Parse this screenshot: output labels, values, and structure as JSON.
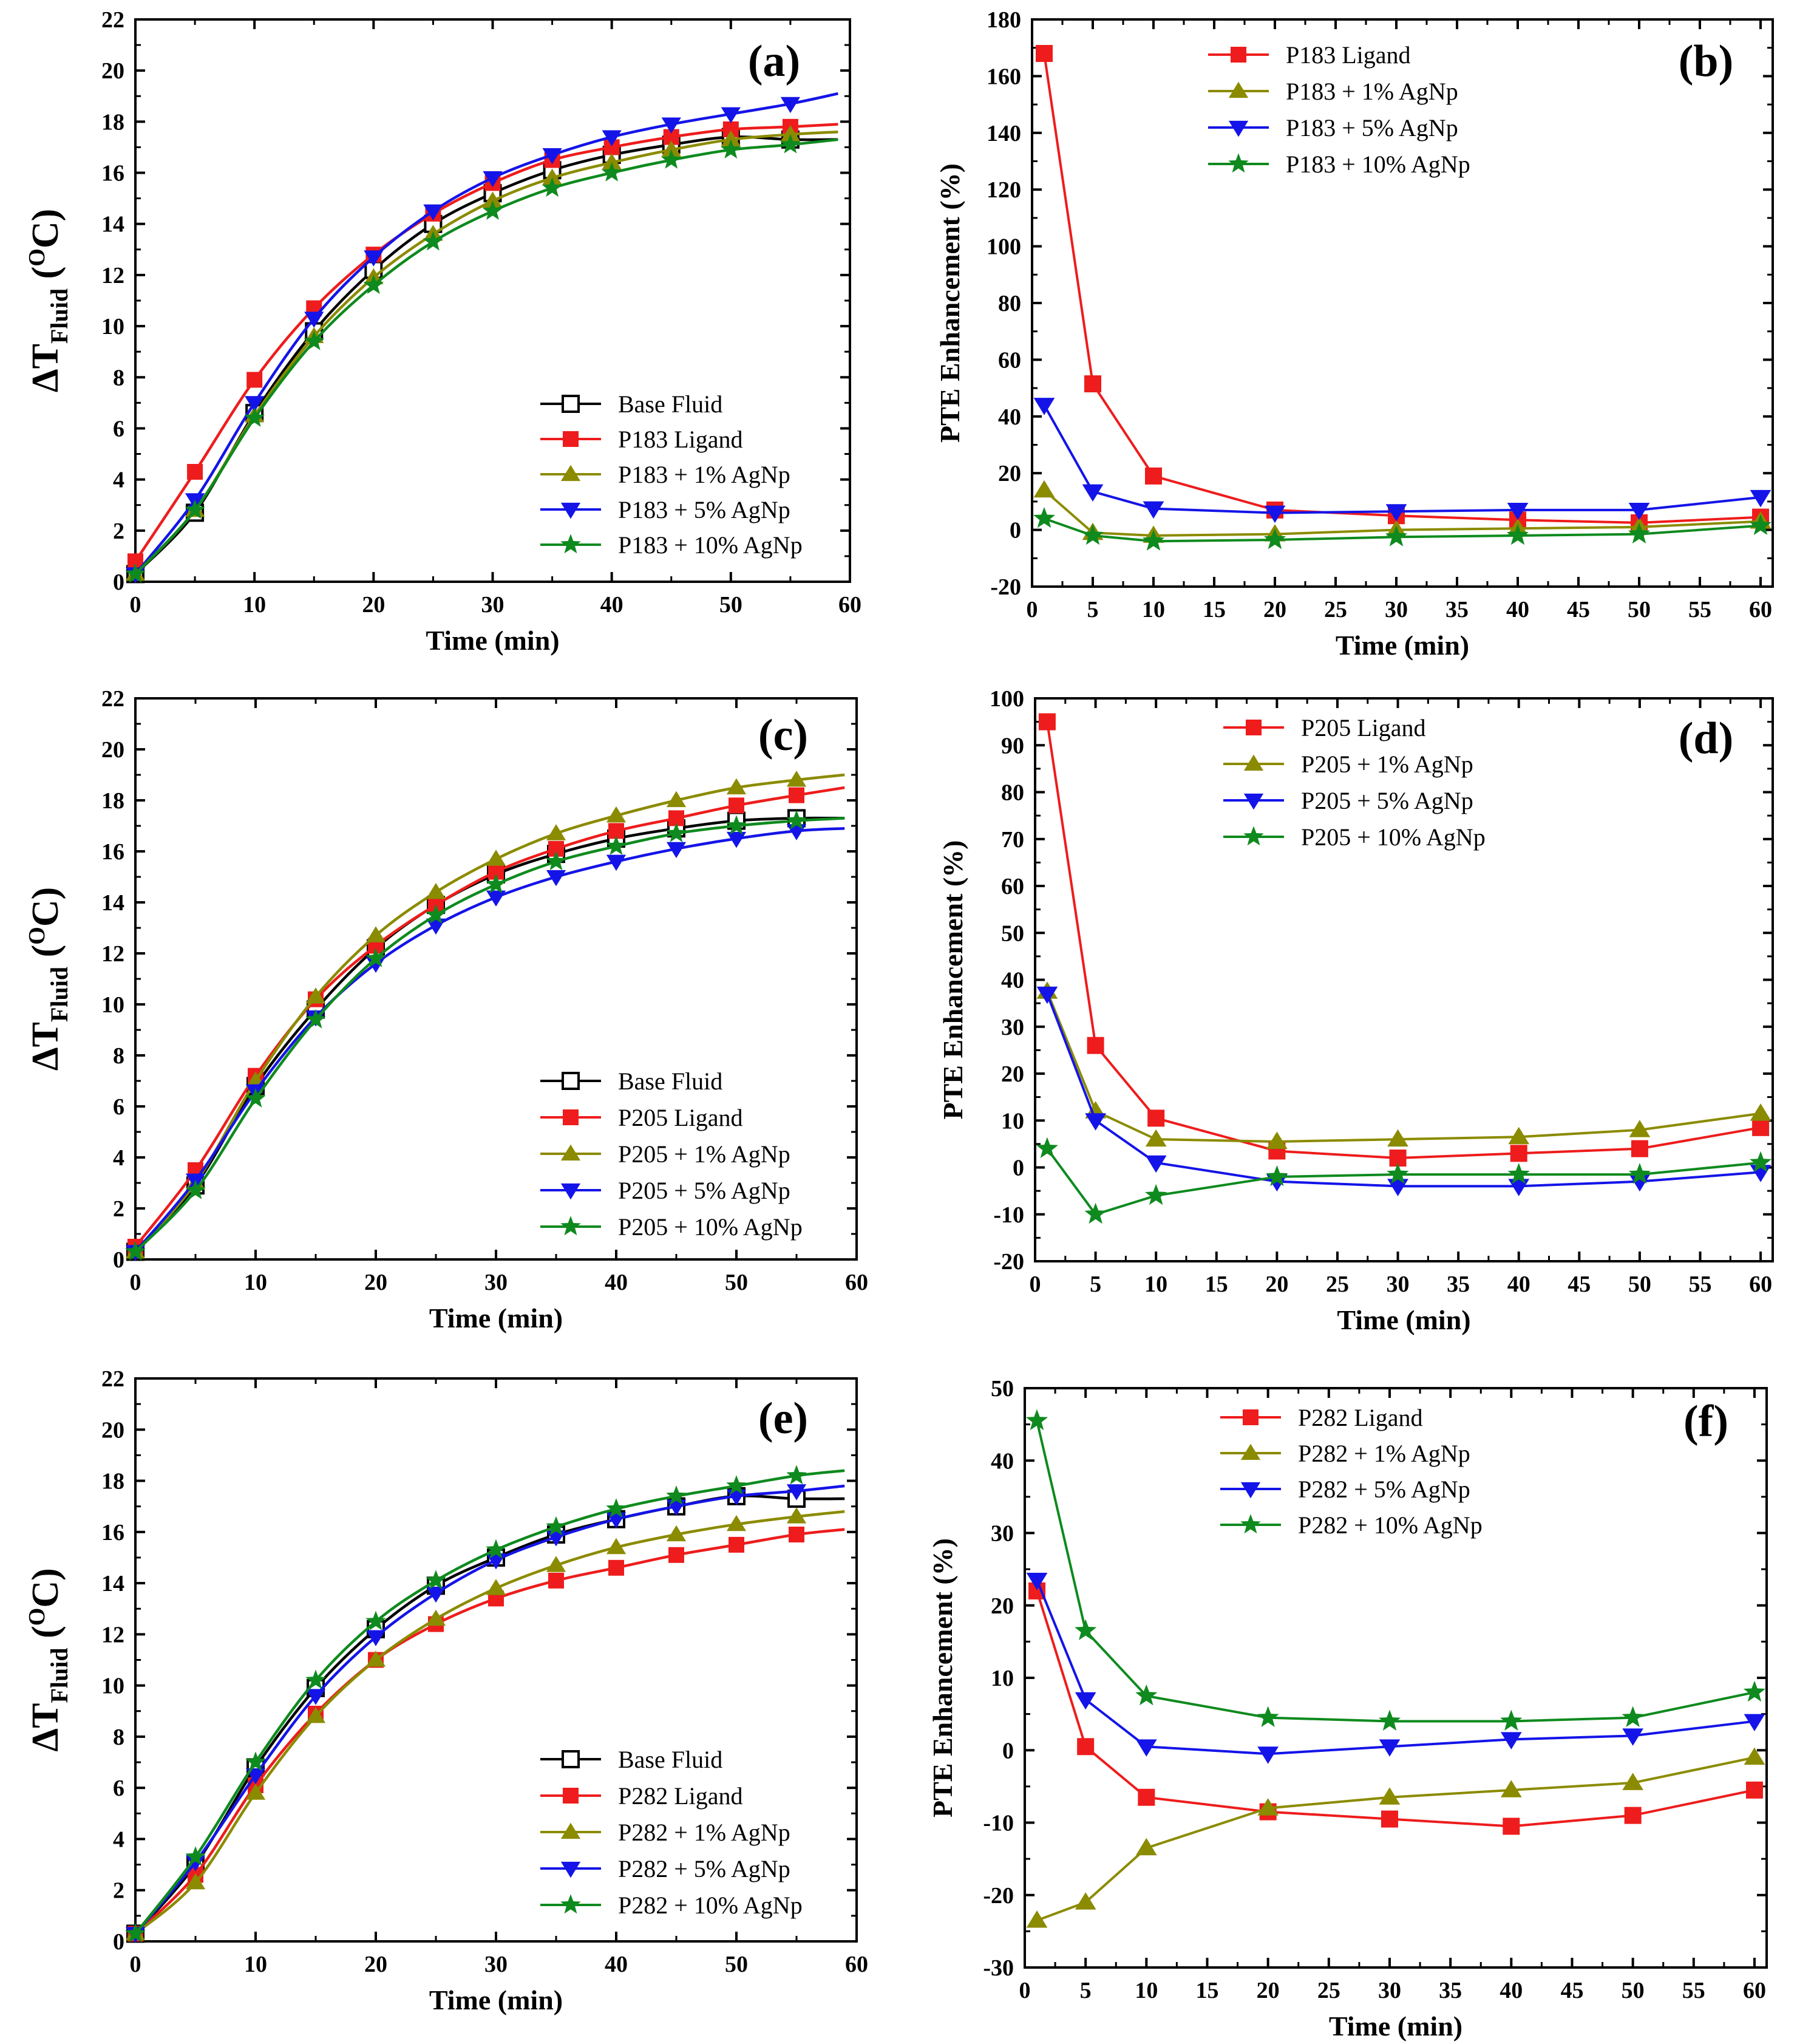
{
  "chart_data": [
    {
      "panel": "(a)",
      "type": "line",
      "xlabel": "Time (min)",
      "ylabel_main": "ΔT",
      "ylabel_sub": "Fluid",
      "ylabel_sup": "O",
      "ylabel_unit": "C",
      "xlim": [
        0,
        60
      ],
      "ylim": [
        0,
        22
      ],
      "xticks": [
        0,
        10,
        20,
        30,
        40,
        50,
        60
      ],
      "yticks": [
        0,
        2,
        4,
        6,
        8,
        10,
        12,
        14,
        16,
        18,
        20,
        22
      ],
      "legend_pos": "bottom-right",
      "series": [
        {
          "name": "Base Fluid",
          "color": "#000000",
          "marker": "square-open",
          "x": [
            0,
            5,
            10,
            15,
            20,
            25,
            30,
            35,
            40,
            45,
            50,
            55,
            59
          ],
          "y": [
            0.3,
            2.7,
            6.6,
            9.8,
            12.2,
            14.0,
            15.2,
            16.1,
            16.7,
            17.1,
            17.4,
            17.3,
            17.3
          ]
        },
        {
          "name": "P183 Ligand",
          "color": "#ee1c1c",
          "marker": "square",
          "x": [
            0,
            5,
            10,
            15,
            20,
            25,
            30,
            35,
            40,
            45,
            50,
            55,
            59
          ],
          "y": [
            0.8,
            4.3,
            7.9,
            10.7,
            12.8,
            14.4,
            15.6,
            16.5,
            17.0,
            17.4,
            17.7,
            17.8,
            17.9
          ]
        },
        {
          "name": "P183 + 1% AgNp",
          "color": "#8b8b00",
          "marker": "triangle-up",
          "x": [
            0,
            5,
            10,
            15,
            20,
            25,
            30,
            35,
            40,
            45,
            50,
            55,
            59
          ],
          "y": [
            0.3,
            2.8,
            6.5,
            9.6,
            11.9,
            13.6,
            14.9,
            15.8,
            16.4,
            16.9,
            17.3,
            17.5,
            17.6
          ]
        },
        {
          "name": "P183 + 5% AgNp",
          "color": "#1414e8",
          "marker": "triangle-down",
          "x": [
            0,
            5,
            10,
            15,
            20,
            25,
            30,
            35,
            40,
            45,
            50,
            55,
            59
          ],
          "y": [
            0.3,
            3.2,
            7.0,
            10.3,
            12.7,
            14.5,
            15.8,
            16.7,
            17.4,
            17.9,
            18.3,
            18.7,
            19.1
          ]
        },
        {
          "name": "P183 + 10% AgNp",
          "color": "#0e8a1e",
          "marker": "star",
          "x": [
            0,
            5,
            10,
            15,
            20,
            25,
            30,
            35,
            40,
            45,
            50,
            55,
            59
          ],
          "y": [
            0.3,
            2.8,
            6.4,
            9.4,
            11.6,
            13.3,
            14.5,
            15.4,
            16.0,
            16.5,
            16.9,
            17.1,
            17.3
          ]
        }
      ]
    },
    {
      "panel": "(b)",
      "type": "line",
      "xlabel": "Time (min)",
      "ylabel": "PTE Enhancement (%)",
      "xlim": [
        0,
        61
      ],
      "ylim": [
        -20,
        180
      ],
      "xticks": [
        0,
        5,
        10,
        15,
        20,
        25,
        30,
        35,
        40,
        45,
        50,
        55,
        60
      ],
      "yticks": [
        -20,
        0,
        20,
        40,
        60,
        80,
        100,
        120,
        140,
        160,
        180
      ],
      "legend_pos": "top-left",
      "series": [
        {
          "name": "P183 Ligand",
          "color": "#ee1c1c",
          "marker": "square",
          "x": [
            1,
            5,
            10,
            20,
            30,
            40,
            50,
            60
          ],
          "y": [
            168,
            51.5,
            19,
            7,
            5,
            3.5,
            2.5,
            4.5
          ]
        },
        {
          "name": "P183 + 1% AgNp",
          "color": "#8b8b00",
          "marker": "triangle-up",
          "x": [
            1,
            5,
            10,
            20,
            30,
            40,
            50,
            60
          ],
          "y": [
            14,
            -1,
            -2,
            -1.5,
            0,
            0.5,
            1,
            3
          ]
        },
        {
          "name": "P183 + 5% AgNp",
          "color": "#1414e8",
          "marker": "triangle-down",
          "x": [
            1,
            5,
            10,
            20,
            30,
            40,
            50,
            60
          ],
          "y": [
            44,
            13.5,
            7.5,
            6,
            6.5,
            7,
            7,
            11.5
          ]
        },
        {
          "name": "P183 + 10% AgNp",
          "color": "#0e8a1e",
          "marker": "star",
          "x": [
            1,
            5,
            10,
            20,
            30,
            40,
            50,
            60
          ],
          "y": [
            4,
            -2,
            -4,
            -3.5,
            -2.5,
            -2,
            -1.5,
            1.5
          ]
        }
      ]
    },
    {
      "panel": "(c)",
      "type": "line",
      "xlabel": "Time (min)",
      "ylabel_main": "ΔT",
      "ylabel_sub": "Fluid",
      "ylabel_sup": "O",
      "ylabel_unit": "C",
      "xlim": [
        0,
        60
      ],
      "ylim": [
        0,
        22
      ],
      "xticks": [
        0,
        10,
        20,
        30,
        40,
        50,
        60
      ],
      "yticks": [
        0,
        2,
        4,
        6,
        8,
        10,
        12,
        14,
        16,
        18,
        20,
        22
      ],
      "legend_pos": "bottom-right",
      "series": [
        {
          "name": "Base Fluid",
          "color": "#000000",
          "marker": "square-open",
          "x": [
            0,
            5,
            10,
            15,
            20,
            25,
            30,
            35,
            40,
            45,
            50,
            55,
            59
          ],
          "y": [
            0.3,
            2.9,
            6.8,
            9.8,
            12.2,
            13.9,
            15.1,
            15.9,
            16.5,
            16.9,
            17.2,
            17.3,
            17.3
          ]
        },
        {
          "name": "P205 Ligand",
          "color": "#ee1c1c",
          "marker": "square",
          "x": [
            0,
            5,
            10,
            15,
            20,
            25,
            30,
            35,
            40,
            45,
            50,
            55,
            59
          ],
          "y": [
            0.5,
            3.5,
            7.2,
            10.2,
            12.3,
            13.9,
            15.2,
            16.1,
            16.8,
            17.3,
            17.8,
            18.2,
            18.5
          ]
        },
        {
          "name": "P205 + 1% AgNp",
          "color": "#8b8b00",
          "marker": "triangle-up",
          "x": [
            0,
            5,
            10,
            15,
            20,
            25,
            30,
            35,
            40,
            45,
            50,
            55,
            59
          ],
          "y": [
            0.3,
            3.0,
            7.0,
            10.3,
            12.7,
            14.4,
            15.7,
            16.7,
            17.4,
            18.0,
            18.5,
            18.8,
            19.0
          ]
        },
        {
          "name": "P205 + 5% AgNp",
          "color": "#1414e8",
          "marker": "triangle-down",
          "x": [
            0,
            5,
            10,
            15,
            20,
            25,
            30,
            35,
            40,
            45,
            50,
            55,
            59
          ],
          "y": [
            0.3,
            3.1,
            6.6,
            9.5,
            11.6,
            13.1,
            14.2,
            15.0,
            15.6,
            16.1,
            16.5,
            16.8,
            16.9
          ]
        },
        {
          "name": "P205 + 10% AgNp",
          "color": "#0e8a1e",
          "marker": "star",
          "x": [
            0,
            5,
            10,
            15,
            20,
            25,
            30,
            35,
            40,
            45,
            50,
            55,
            59
          ],
          "y": [
            0.3,
            2.7,
            6.3,
            9.4,
            11.8,
            13.5,
            14.7,
            15.6,
            16.2,
            16.7,
            17.0,
            17.2,
            17.3
          ]
        }
      ]
    },
    {
      "panel": "(d)",
      "type": "line",
      "xlabel": "Time (min)",
      "ylabel": "PTE Enhancement (%)",
      "xlim": [
        0,
        61
      ],
      "ylim": [
        -20,
        100
      ],
      "xticks": [
        0,
        5,
        10,
        15,
        20,
        25,
        30,
        35,
        40,
        45,
        50,
        55,
        60
      ],
      "yticks": [
        -20,
        -10,
        0,
        10,
        20,
        30,
        40,
        50,
        60,
        70,
        80,
        90,
        100
      ],
      "legend_pos": "top-left",
      "series": [
        {
          "name": "P205 Ligand",
          "color": "#ee1c1c",
          "marker": "square",
          "x": [
            1,
            5,
            10,
            20,
            30,
            40,
            50,
            60
          ],
          "y": [
            95,
            26,
            10.5,
            3.5,
            2,
            3,
            4,
            8.5
          ]
        },
        {
          "name": "P205 + 1% AgNp",
          "color": "#8b8b00",
          "marker": "triangle-up",
          "x": [
            1,
            5,
            10,
            20,
            30,
            40,
            50,
            60
          ],
          "y": [
            37.5,
            12,
            6,
            5.5,
            6,
            6.5,
            8,
            11.5
          ]
        },
        {
          "name": "P205 + 5% AgNp",
          "color": "#1414e8",
          "marker": "triangle-down",
          "x": [
            1,
            5,
            10,
            20,
            30,
            40,
            50,
            60
          ],
          "y": [
            37,
            10,
            1,
            -3,
            -4,
            -4,
            -3,
            -1
          ]
        },
        {
          "name": "P205 + 10% AgNp",
          "color": "#0e8a1e",
          "marker": "star",
          "x": [
            1,
            5,
            10,
            20,
            30,
            40,
            50,
            60
          ],
          "y": [
            4,
            -10,
            -6,
            -2,
            -1.5,
            -1.5,
            -1.5,
            1
          ]
        }
      ]
    },
    {
      "panel": "(e)",
      "type": "line",
      "xlabel": "Time (min)",
      "ylabel_main": "ΔT",
      "ylabel_sub": "Fluid",
      "ylabel_sup": "O",
      "ylabel_unit": "C",
      "xlim": [
        0,
        60
      ],
      "ylim": [
        0,
        22
      ],
      "xticks": [
        0,
        10,
        20,
        30,
        40,
        50,
        60
      ],
      "yticks": [
        0,
        2,
        4,
        6,
        8,
        10,
        12,
        14,
        16,
        18,
        20,
        22
      ],
      "legend_pos": "bottom-right",
      "series": [
        {
          "name": "Base Fluid",
          "color": "#000000",
          "marker": "square-open",
          "x": [
            0,
            5,
            10,
            15,
            20,
            25,
            30,
            35,
            40,
            45,
            50,
            55,
            59
          ],
          "y": [
            0.3,
            3.0,
            6.8,
            9.9,
            12.2,
            13.9,
            15.0,
            15.9,
            16.5,
            17.0,
            17.4,
            17.3,
            17.3
          ]
        },
        {
          "name": "P282 Ligand",
          "color": "#ee1c1c",
          "marker": "square",
          "x": [
            0,
            5,
            10,
            15,
            20,
            25,
            30,
            35,
            40,
            45,
            50,
            55,
            59
          ],
          "y": [
            0.3,
            2.6,
            6.1,
            8.9,
            11.0,
            12.4,
            13.4,
            14.1,
            14.6,
            15.1,
            15.5,
            15.9,
            16.1
          ]
        },
        {
          "name": "P282 + 1% AgNp",
          "color": "#8b8b00",
          "marker": "triangle-up",
          "x": [
            0,
            5,
            10,
            15,
            20,
            25,
            30,
            35,
            40,
            45,
            50,
            55,
            59
          ],
          "y": [
            0.3,
            2.3,
            5.8,
            8.8,
            11.0,
            12.6,
            13.8,
            14.7,
            15.4,
            15.9,
            16.3,
            16.6,
            16.8
          ]
        },
        {
          "name": "P282 + 5% AgNp",
          "color": "#1414e8",
          "marker": "triangle-down",
          "x": [
            0,
            5,
            10,
            15,
            20,
            25,
            30,
            35,
            40,
            45,
            50,
            55,
            59
          ],
          "y": [
            0.3,
            3.1,
            6.5,
            9.6,
            11.9,
            13.6,
            14.9,
            15.8,
            16.5,
            17.0,
            17.4,
            17.6,
            17.8
          ]
        },
        {
          "name": "P282 + 10% AgNp",
          "color": "#0e8a1e",
          "marker": "star",
          "x": [
            0,
            5,
            10,
            15,
            20,
            25,
            30,
            35,
            40,
            45,
            50,
            55,
            59
          ],
          "y": [
            0.3,
            3.3,
            7.0,
            10.2,
            12.5,
            14.1,
            15.3,
            16.2,
            16.9,
            17.4,
            17.8,
            18.2,
            18.4
          ]
        }
      ]
    },
    {
      "panel": "(f)",
      "type": "line",
      "xlabel": "Time (min)",
      "ylabel": "PTE Enhancement (%)",
      "xlim": [
        0,
        61
      ],
      "ylim": [
        -30,
        50
      ],
      "xticks": [
        0,
        5,
        10,
        15,
        20,
        25,
        30,
        35,
        40,
        45,
        50,
        55,
        60
      ],
      "yticks": [
        -30,
        -20,
        -10,
        0,
        10,
        20,
        30,
        40,
        50
      ],
      "legend_pos": "top-left",
      "series": [
        {
          "name": "P282 Ligand",
          "color": "#ee1c1c",
          "marker": "square",
          "x": [
            1,
            5,
            10,
            20,
            30,
            40,
            50,
            60
          ],
          "y": [
            22,
            0.5,
            -6.5,
            -8.5,
            -9.5,
            -10.5,
            -9,
            -5.5
          ]
        },
        {
          "name": "P282 + 1% AgNp",
          "color": "#8b8b00",
          "marker": "triangle-up",
          "x": [
            1,
            5,
            10,
            20,
            30,
            40,
            50,
            60
          ],
          "y": [
            -23.5,
            -21,
            -13.5,
            -8,
            -6.5,
            -5.5,
            -4.5,
            -1
          ]
        },
        {
          "name": "P282 + 5% AgNp",
          "color": "#1414e8",
          "marker": "triangle-down",
          "x": [
            1,
            5,
            10,
            20,
            30,
            40,
            50,
            60
          ],
          "y": [
            23.5,
            7,
            0.5,
            -0.5,
            0.5,
            1.5,
            2,
            4
          ]
        },
        {
          "name": "P282 + 10% AgNp",
          "color": "#0e8a1e",
          "marker": "star",
          "x": [
            1,
            5,
            10,
            20,
            30,
            40,
            50,
            60
          ],
          "y": [
            45.5,
            16.5,
            7.5,
            4.5,
            4,
            4,
            4.5,
            8
          ]
        }
      ]
    }
  ]
}
